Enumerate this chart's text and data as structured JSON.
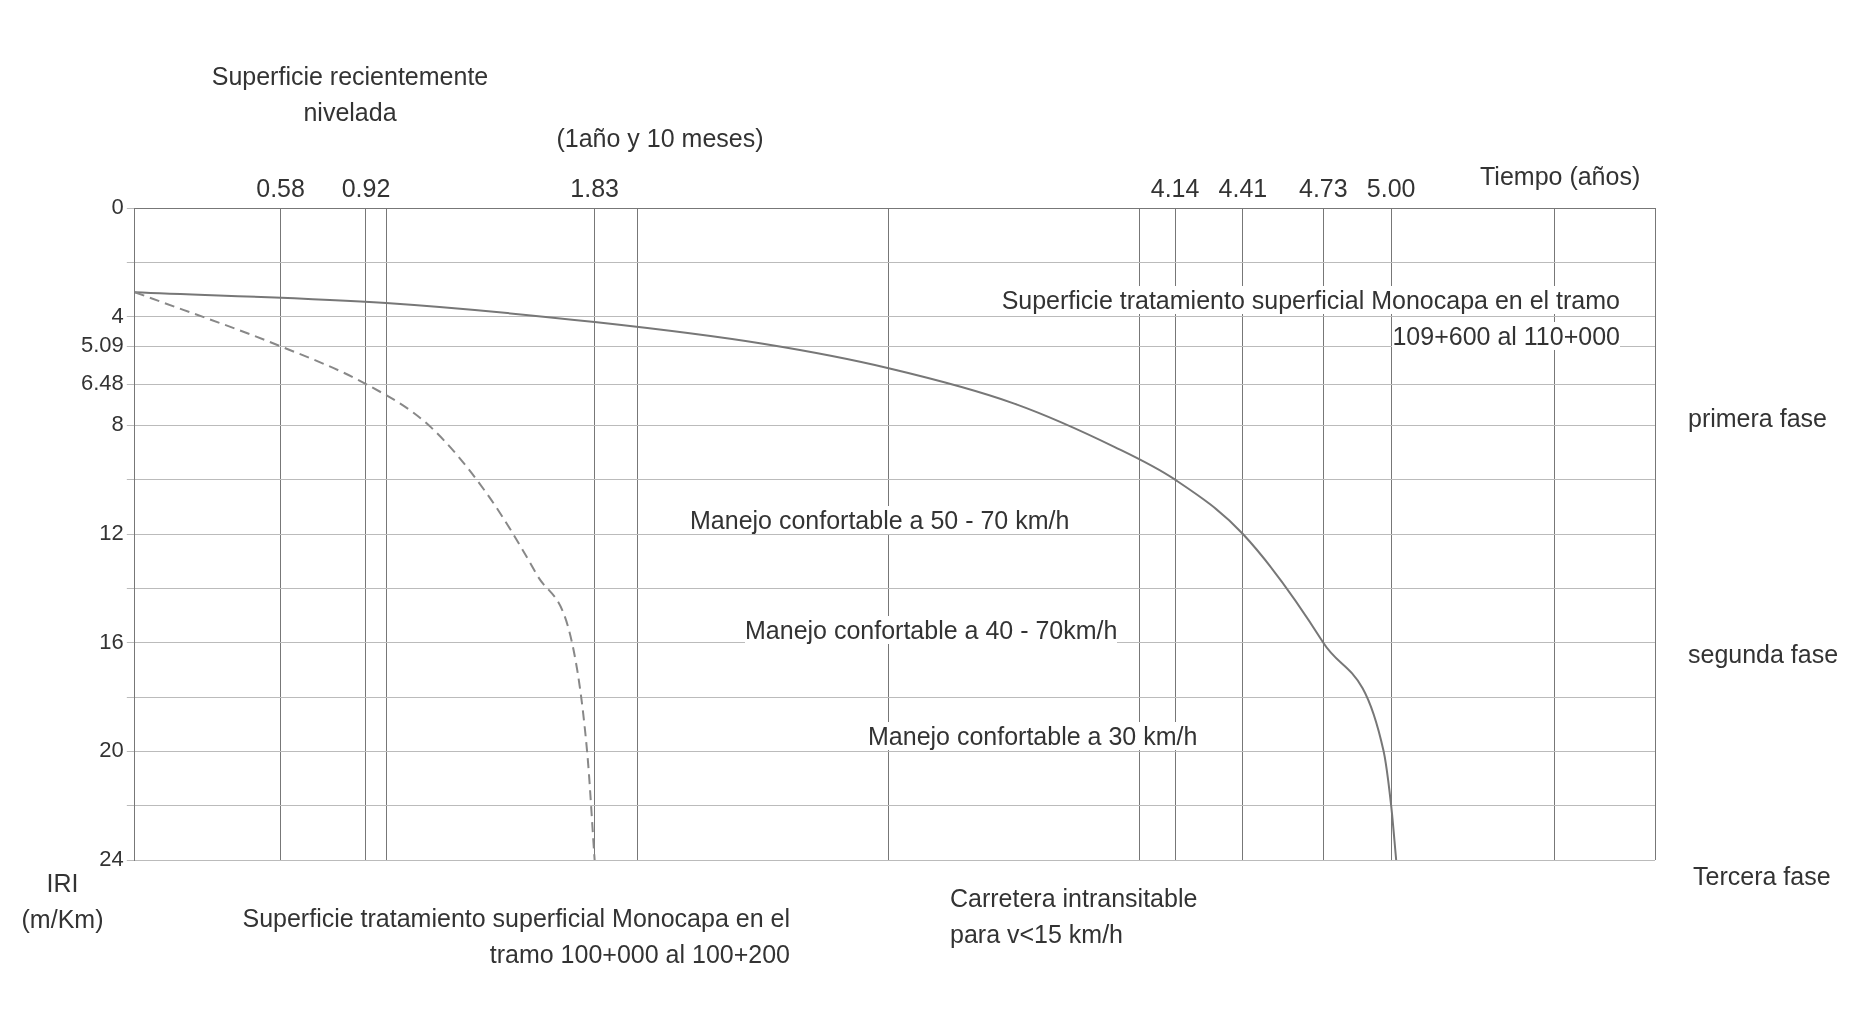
{
  "chart_data": {
    "type": "line",
    "xlabel": "Tiempo (años)",
    "ylabel": "IRI (m/Km)",
    "xlim": [
      0,
      6.05
    ],
    "ylim": [
      24,
      0
    ],
    "xticks": [
      0.58,
      0.92,
      {
        "value": 1,
        "label": null
      },
      1.83,
      {
        "value": 2,
        "label": null
      },
      {
        "value": 3,
        "label": null
      },
      {
        "value": 4,
        "label": null
      },
      4.14,
      4.41,
      4.73,
      {
        "value": 5,
        "label": "5.00"
      },
      {
        "value": 5.65,
        "label": null
      },
      {
        "value": 6.05,
        "label": null
      }
    ],
    "yticks": [
      0,
      {
        "value": 2,
        "label": null
      },
      4,
      5.09,
      6.48,
      8,
      {
        "value": 10,
        "label": null
      },
      12,
      {
        "value": 14,
        "label": null
      },
      16,
      {
        "value": 18,
        "label": null
      },
      20,
      {
        "value": 22,
        "label": null
      },
      24
    ],
    "grid": true,
    "legend": false,
    "series": [
      {
        "color": "#888888",
        "line_style": "dashed",
        "x": [
          0,
          0.58,
          0.92,
          1.17,
          1.4,
          1.6,
          1.74,
          1.8,
          1.83
        ],
        "values": [
          3.1,
          5.09,
          6.48,
          8,
          10.5,
          13.5,
          16,
          20,
          24
        ]
      },
      {
        "color": "#777777",
        "line_style": "solid",
        "x": [
          0,
          1,
          1.83,
          2.5,
          3,
          3.5,
          3.9,
          4.14,
          4.41,
          4.73,
          4.97,
          5.0,
          5.02
        ],
        "values": [
          3.1,
          3.5,
          4.2,
          5,
          5.9,
          7.2,
          8.8,
          10,
          12,
          16,
          20,
          22,
          24
        ]
      }
    ],
    "annotations": [
      "Superficie recientemente nivelada",
      "(1año y 10 meses)",
      "Superficie tratamiento superficial Monocapa en el tramo 109+600 al 110+000",
      "Manejo confortable a 50 -  70 km/h",
      "Manejo confortable a 40 - 70km/h",
      "Manejo confortable a 30 km/h",
      "Superficie tratamiento superficial Monocapa en el tramo 100+000 al 100+200",
      "Carretera intransitable para v<15 km/h",
      "primera fase",
      "segunda fase",
      "Tercera fase"
    ]
  }
}
